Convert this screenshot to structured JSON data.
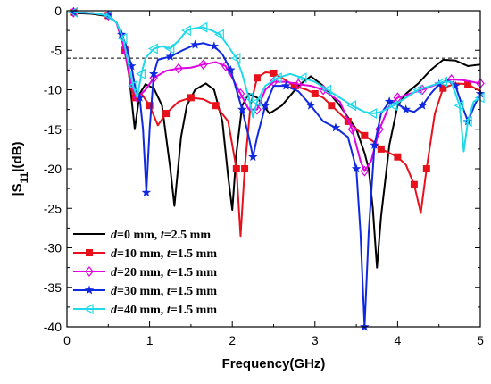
{
  "chart_data": {
    "type": "line",
    "xlabel": "Frequency(GHz)",
    "ylabel_main": "|S",
    "ylabel_sub": "11",
    "ylabel_tail": "|(dB)",
    "xlim": [
      0,
      5
    ],
    "ylim": [
      -40,
      0
    ],
    "x_ticks": [
      "0",
      "1",
      "2",
      "3",
      "4",
      "5"
    ],
    "y_ticks": [
      "0",
      "-5",
      "-10",
      "-15",
      "-20",
      "-25",
      "-30",
      "-35",
      "-40"
    ],
    "reference_line": {
      "y": -6,
      "style": "dashed"
    },
    "legend_position": "bottom-left",
    "series": [
      {
        "label_d": "d",
        "label_d_val": "=0 mm, ",
        "label_t": "t",
        "label_t_val": "=2.5 mm",
        "color": "#000000",
        "marker": "none",
        "points": [
          [
            0.08,
            -0.3
          ],
          [
            0.3,
            -0.4
          ],
          [
            0.5,
            -0.7
          ],
          [
            0.6,
            -1.5
          ],
          [
            0.68,
            -4
          ],
          [
            0.75,
            -8
          ],
          [
            0.82,
            -15
          ],
          [
            0.88,
            -10.5
          ],
          [
            0.95,
            -9.3
          ],
          [
            1.05,
            -9.8
          ],
          [
            1.15,
            -12
          ],
          [
            1.25,
            -20
          ],
          [
            1.3,
            -24.7
          ],
          [
            1.38,
            -16
          ],
          [
            1.45,
            -12
          ],
          [
            1.55,
            -10
          ],
          [
            1.68,
            -9.2
          ],
          [
            1.78,
            -10
          ],
          [
            1.88,
            -14
          ],
          [
            1.95,
            -21
          ],
          [
            2.0,
            -25.2
          ],
          [
            2.05,
            -18
          ],
          [
            2.12,
            -12
          ],
          [
            2.2,
            -10.5
          ],
          [
            2.3,
            -11
          ],
          [
            2.45,
            -13
          ],
          [
            2.6,
            -12
          ],
          [
            2.8,
            -9.5
          ],
          [
            2.95,
            -8.3
          ],
          [
            3.1,
            -9.5
          ],
          [
            3.3,
            -12
          ],
          [
            3.5,
            -15
          ],
          [
            3.6,
            -18
          ],
          [
            3.65,
            -20
          ],
          [
            3.7,
            -25
          ],
          [
            3.75,
            -32.5
          ],
          [
            3.8,
            -26
          ],
          [
            3.9,
            -17
          ],
          [
            4.0,
            -12
          ],
          [
            4.1,
            -10.5
          ],
          [
            4.25,
            -9.2
          ],
          [
            4.4,
            -7.5
          ],
          [
            4.55,
            -6.2
          ],
          [
            4.7,
            -6.3
          ],
          [
            4.85,
            -7
          ],
          [
            5.0,
            -6.8
          ]
        ]
      },
      {
        "label_d": "d",
        "label_d_val": "=10 mm, ",
        "label_t": "t",
        "label_t_val": "=1.5 mm",
        "color": "#e8101a",
        "marker": "square",
        "points": [
          [
            0.08,
            -0.2
          ],
          [
            0.3,
            -0.3
          ],
          [
            0.5,
            -0.6
          ],
          [
            0.6,
            -1.5
          ],
          [
            0.7,
            -5
          ],
          [
            0.78,
            -10
          ],
          [
            0.83,
            -11
          ],
          [
            0.9,
            -10.5
          ],
          [
            1.0,
            -12
          ],
          [
            1.1,
            -14.5
          ],
          [
            1.2,
            -13
          ],
          [
            1.35,
            -11.5
          ],
          [
            1.5,
            -11
          ],
          [
            1.65,
            -11.2
          ],
          [
            1.8,
            -12
          ],
          [
            1.95,
            -14
          ],
          [
            2.05,
            -20
          ],
          [
            2.1,
            -28.5
          ],
          [
            2.15,
            -20
          ],
          [
            2.22,
            -12
          ],
          [
            2.3,
            -8.5
          ],
          [
            2.4,
            -7.8
          ],
          [
            2.5,
            -7.9
          ],
          [
            2.6,
            -8.5
          ],
          [
            2.75,
            -9.5
          ],
          [
            2.9,
            -10
          ],
          [
            3.0,
            -10.5
          ],
          [
            3.1,
            -11
          ],
          [
            3.2,
            -12
          ],
          [
            3.3,
            -13
          ],
          [
            3.4,
            -14
          ],
          [
            3.5,
            -15
          ],
          [
            3.6,
            -15.8
          ],
          [
            3.7,
            -16.5
          ],
          [
            3.8,
            -17.5
          ],
          [
            3.9,
            -18
          ],
          [
            4.0,
            -18.5
          ],
          [
            4.1,
            -19.5
          ],
          [
            4.2,
            -22
          ],
          [
            4.28,
            -25.6
          ],
          [
            4.35,
            -20
          ],
          [
            4.45,
            -13
          ],
          [
            4.55,
            -9.8
          ],
          [
            4.7,
            -9.2
          ],
          [
            4.85,
            -9.3
          ],
          [
            5.0,
            -10.2
          ]
        ]
      },
      {
        "label_d": "d",
        "label_d_val": "=20 mm, ",
        "label_t": "t",
        "label_t_val": "=1.5 mm",
        "color": "#e000e0",
        "marker": "diamond",
        "points": [
          [
            0.08,
            -0.2
          ],
          [
            0.3,
            -0.3
          ],
          [
            0.5,
            -0.6
          ],
          [
            0.6,
            -1.5
          ],
          [
            0.7,
            -5
          ],
          [
            0.78,
            -9.5
          ],
          [
            0.85,
            -11
          ],
          [
            0.95,
            -10
          ],
          [
            1.05,
            -8.5
          ],
          [
            1.2,
            -7.6
          ],
          [
            1.35,
            -7.3
          ],
          [
            1.5,
            -7.2
          ],
          [
            1.65,
            -6.8
          ],
          [
            1.8,
            -6.5
          ],
          [
            1.92,
            -7
          ],
          [
            2.0,
            -8.5
          ],
          [
            2.1,
            -10.5
          ],
          [
            2.2,
            -12.5
          ],
          [
            2.3,
            -12.5
          ],
          [
            2.4,
            -10
          ],
          [
            2.5,
            -9
          ],
          [
            2.65,
            -9
          ],
          [
            2.8,
            -9.3
          ],
          [
            2.95,
            -9.5
          ],
          [
            3.1,
            -10
          ],
          [
            3.3,
            -11.5
          ],
          [
            3.45,
            -15
          ],
          [
            3.55,
            -19
          ],
          [
            3.6,
            -20.3
          ],
          [
            3.68,
            -19
          ],
          [
            3.78,
            -15
          ],
          [
            3.9,
            -12
          ],
          [
            4.0,
            -11
          ],
          [
            4.15,
            -10.5
          ],
          [
            4.3,
            -10
          ],
          [
            4.5,
            -9.2
          ],
          [
            4.65,
            -8.7
          ],
          [
            4.8,
            -8.8
          ],
          [
            5.0,
            -9.2
          ]
        ]
      },
      {
        "label_d": "d",
        "label_d_val": "=30 mm, ",
        "label_t": "t",
        "label_t_val": "=1.5 mm",
        "color": "#1028e0",
        "marker": "star",
        "points": [
          [
            0.08,
            -0.2
          ],
          [
            0.3,
            -0.3
          ],
          [
            0.5,
            -0.6
          ],
          [
            0.6,
            -1.5
          ],
          [
            0.66,
            -3
          ],
          [
            0.72,
            -4.5
          ],
          [
            0.78,
            -7
          ],
          [
            0.83,
            -10
          ],
          [
            0.88,
            -11
          ],
          [
            0.92,
            -15
          ],
          [
            0.96,
            -23
          ],
          [
            1.0,
            -15
          ],
          [
            1.05,
            -8
          ],
          [
            1.1,
            -6.2
          ],
          [
            1.25,
            -5.8
          ],
          [
            1.4,
            -5
          ],
          [
            1.55,
            -4.3
          ],
          [
            1.65,
            -4.1
          ],
          [
            1.78,
            -4.5
          ],
          [
            1.88,
            -5.5
          ],
          [
            1.98,
            -7.5
          ],
          [
            2.05,
            -10
          ],
          [
            2.12,
            -12.5
          ],
          [
            2.2,
            -16
          ],
          [
            2.25,
            -18.5
          ],
          [
            2.3,
            -16
          ],
          [
            2.4,
            -12
          ],
          [
            2.5,
            -9.5
          ],
          [
            2.65,
            -9.5
          ],
          [
            2.8,
            -10.2
          ],
          [
            2.95,
            -12
          ],
          [
            3.1,
            -14
          ],
          [
            3.25,
            -14.8
          ],
          [
            3.4,
            -16
          ],
          [
            3.5,
            -20
          ],
          [
            3.55,
            -28
          ],
          [
            3.6,
            -40
          ],
          [
            3.65,
            -28
          ],
          [
            3.72,
            -17
          ],
          [
            3.8,
            -13
          ],
          [
            3.9,
            -11.5
          ],
          [
            4.0,
            -11.8
          ],
          [
            4.1,
            -12.5
          ],
          [
            4.2,
            -12.8
          ],
          [
            4.3,
            -12
          ],
          [
            4.4,
            -10.5
          ],
          [
            4.5,
            -9.3
          ],
          [
            4.6,
            -8.8
          ],
          [
            4.7,
            -9.5
          ],
          [
            4.78,
            -12
          ],
          [
            4.85,
            -14
          ],
          [
            4.93,
            -12
          ],
          [
            5.0,
            -10.5
          ]
        ]
      },
      {
        "label_d": "d",
        "label_d_val": "=40 mm, ",
        "label_t": "t",
        "label_t_val": "=1.5 mm",
        "color": "#20d8e8",
        "marker": "triangle-left",
        "points": [
          [
            0.08,
            -0.2
          ],
          [
            0.3,
            -0.3
          ],
          [
            0.5,
            -0.6
          ],
          [
            0.6,
            -1.5
          ],
          [
            0.68,
            -3.5
          ],
          [
            0.75,
            -7
          ],
          [
            0.8,
            -9.5
          ],
          [
            0.85,
            -11
          ],
          [
            0.9,
            -8
          ],
          [
            0.95,
            -6
          ],
          [
            1.05,
            -4.8
          ],
          [
            1.15,
            -4.5
          ],
          [
            1.25,
            -4.8
          ],
          [
            1.35,
            -3.8
          ],
          [
            1.45,
            -2.5
          ],
          [
            1.55,
            -2.2
          ],
          [
            1.65,
            -2.1
          ],
          [
            1.75,
            -2.5
          ],
          [
            1.85,
            -3
          ],
          [
            1.95,
            -4.5
          ],
          [
            2.05,
            -6
          ],
          [
            2.12,
            -8
          ],
          [
            2.2,
            -11
          ],
          [
            2.25,
            -13.5
          ],
          [
            2.3,
            -11.5
          ],
          [
            2.4,
            -9.5
          ],
          [
            2.55,
            -8.5
          ],
          [
            2.7,
            -8
          ],
          [
            2.85,
            -8.5
          ],
          [
            3.0,
            -9
          ],
          [
            3.15,
            -10
          ],
          [
            3.3,
            -11
          ],
          [
            3.45,
            -12
          ],
          [
            3.6,
            -12.8
          ],
          [
            3.7,
            -13
          ],
          [
            3.8,
            -12.8
          ],
          [
            3.95,
            -12
          ],
          [
            4.1,
            -11
          ],
          [
            4.25,
            -10
          ],
          [
            4.4,
            -9.5
          ],
          [
            4.55,
            -9
          ],
          [
            4.65,
            -9
          ],
          [
            4.75,
            -12
          ],
          [
            4.8,
            -17.8
          ],
          [
            4.85,
            -14
          ],
          [
            4.92,
            -11.5
          ],
          [
            5.0,
            -11
          ]
        ]
      }
    ]
  }
}
